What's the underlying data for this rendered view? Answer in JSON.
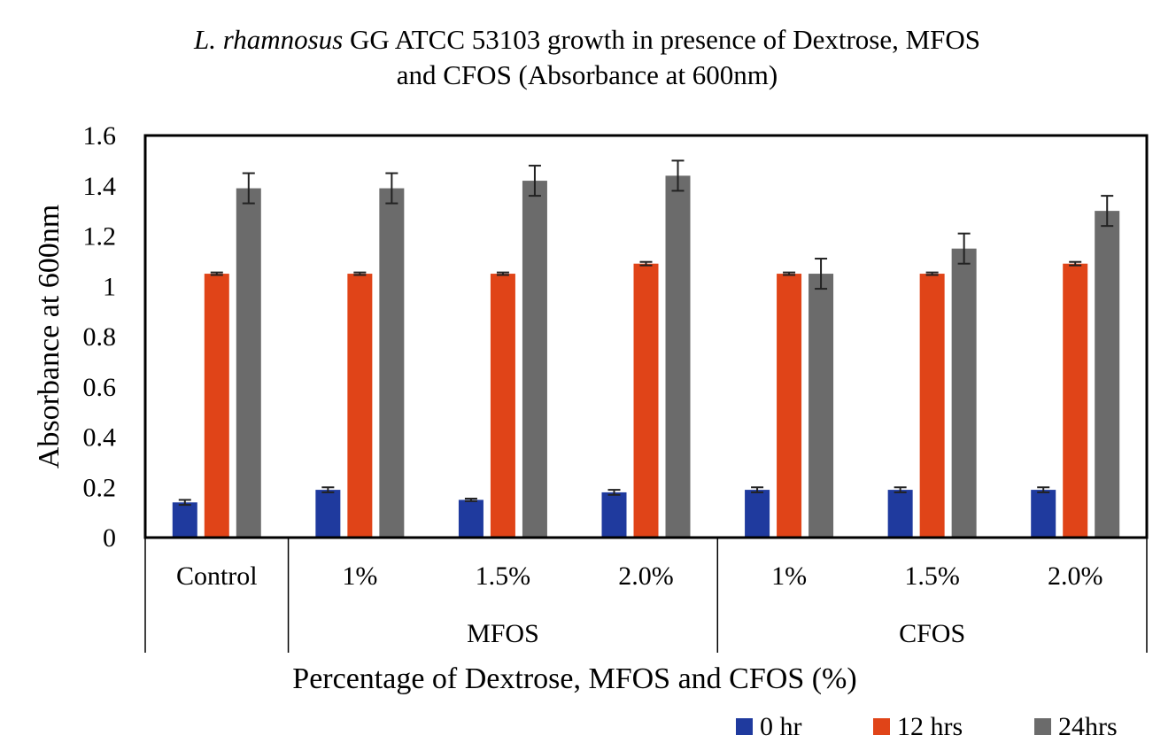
{
  "chart_data": {
    "type": "bar",
    "title_italic": "L. rhamnosus",
    "title_rest": " GG ATCC 53103 growth in presence of Dextrose, MFOS",
    "title_line2": "and CFOS (Absorbance at 600nm)",
    "xlabel": "Percentage of Dextrose, MFOS and CFOS (%)",
    "ylabel": "Absorbance at 600nm",
    "ylim": [
      0,
      1.6
    ],
    "yticks": [
      "0",
      "0.2",
      "0.4",
      "0.6",
      "0.8",
      "1",
      "1.2",
      "1.4",
      "1.6"
    ],
    "categories": [
      "Control",
      "1%",
      "1.5%",
      "2.0%",
      "1%",
      "1.5%",
      "2.0%"
    ],
    "groups": [
      {
        "label": "",
        "span": 1
      },
      {
        "label": "MFOS",
        "span": 3
      },
      {
        "label": "CFOS",
        "span": 3
      }
    ],
    "series": [
      {
        "name": "0 hr",
        "color": "#1f3a9e",
        "values": [
          0.14,
          0.19,
          0.15,
          0.18,
          0.19,
          0.19,
          0.19
        ],
        "errors": [
          0.01,
          0.01,
          0.005,
          0.01,
          0.01,
          0.01,
          0.01
        ]
      },
      {
        "name": "12 hrs",
        "color": "#e04418",
        "values": [
          1.05,
          1.05,
          1.05,
          1.09,
          1.05,
          1.05,
          1.09
        ],
        "errors": [
          0.005,
          0.005,
          0.005,
          0.007,
          0.005,
          0.005,
          0.007
        ]
      },
      {
        "name": "24hrs",
        "color": "#6b6b6b",
        "values": [
          1.39,
          1.39,
          1.42,
          1.44,
          1.05,
          1.15,
          1.3
        ],
        "errors": [
          0.06,
          0.06,
          0.06,
          0.06,
          0.06,
          0.06,
          0.06
        ]
      }
    ],
    "legend_position": "bottom-right",
    "grid": false
  }
}
